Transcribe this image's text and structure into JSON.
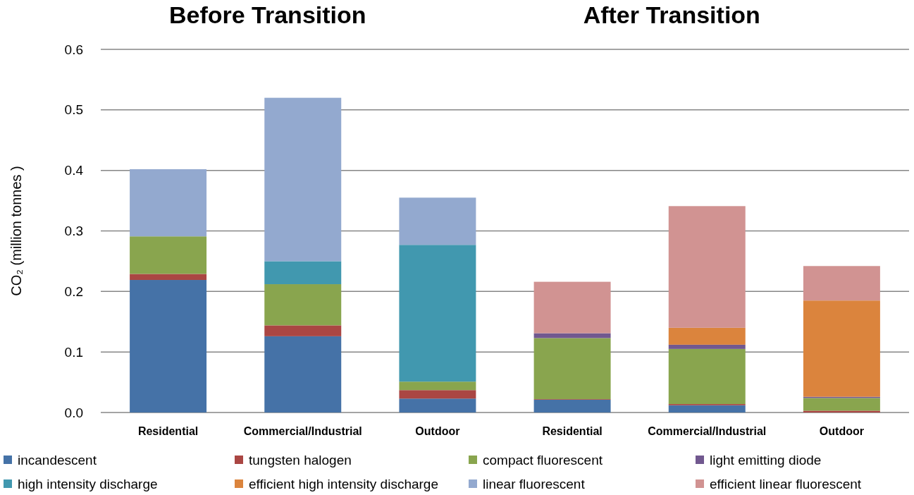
{
  "chart_data": {
    "type": "bar",
    "stacked": true,
    "annotations": [
      "Before Transition",
      "After Transition"
    ],
    "ylabel": "CO₂  (million tonnes )",
    "categories": [
      "Residential",
      "Commercial/Industrial",
      "Outdoor",
      "Residential",
      "Commercial/Industrial",
      "Outdoor"
    ],
    "series": [
      {
        "name": "incandescent",
        "color": "#4572a7",
        "values": [
          0.219,
          0.126,
          0.023,
          0.021,
          0.012,
          0
        ]
      },
      {
        "name": "tungsten halogen",
        "color": "#aa4643",
        "values": [
          0.01,
          0.018,
          0.014,
          0.001,
          0.002,
          0.003
        ]
      },
      {
        "name": "compact fluorescent",
        "color": "#89a54e",
        "values": [
          0.062,
          0.068,
          0.014,
          0.101,
          0.091,
          0.021
        ]
      },
      {
        "name": "light emitting diode",
        "color": "#71588f",
        "values": [
          0,
          0,
          0,
          0.008,
          0.007,
          0.002
        ]
      },
      {
        "name": "high intensity discharge",
        "color": "#4198af",
        "values": [
          0,
          0.038,
          0.226,
          0,
          0,
          0
        ]
      },
      {
        "name": "efficient high intensity discharge",
        "color": "#db843d",
        "values": [
          0,
          0,
          0,
          0,
          0.028,
          0.159
        ]
      },
      {
        "name": "linear fluorescent",
        "color": "#93a9cf",
        "values": [
          0.111,
          0.27,
          0.078,
          0,
          0,
          0
        ]
      },
      {
        "name": "efficient linear fluorescent",
        "color": "#d19392",
        "values": [
          0,
          0,
          0,
          0.085,
          0.201,
          0.057
        ]
      }
    ],
    "ylim": [
      0,
      0.6
    ],
    "yticks": [
      {
        "value": 0,
        "label": "0.0"
      },
      {
        "value": 0.1,
        "label": "0.1"
      },
      {
        "value": 0.2,
        "label": "0.2"
      },
      {
        "value": 0.3,
        "label": "0.3"
      },
      {
        "value": 0.4,
        "label": "0.4"
      },
      {
        "value": 0.5,
        "label": "0.5"
      },
      {
        "value": 0.6,
        "label": "0.6"
      }
    ],
    "grid": "y",
    "legend": "bottom"
  }
}
